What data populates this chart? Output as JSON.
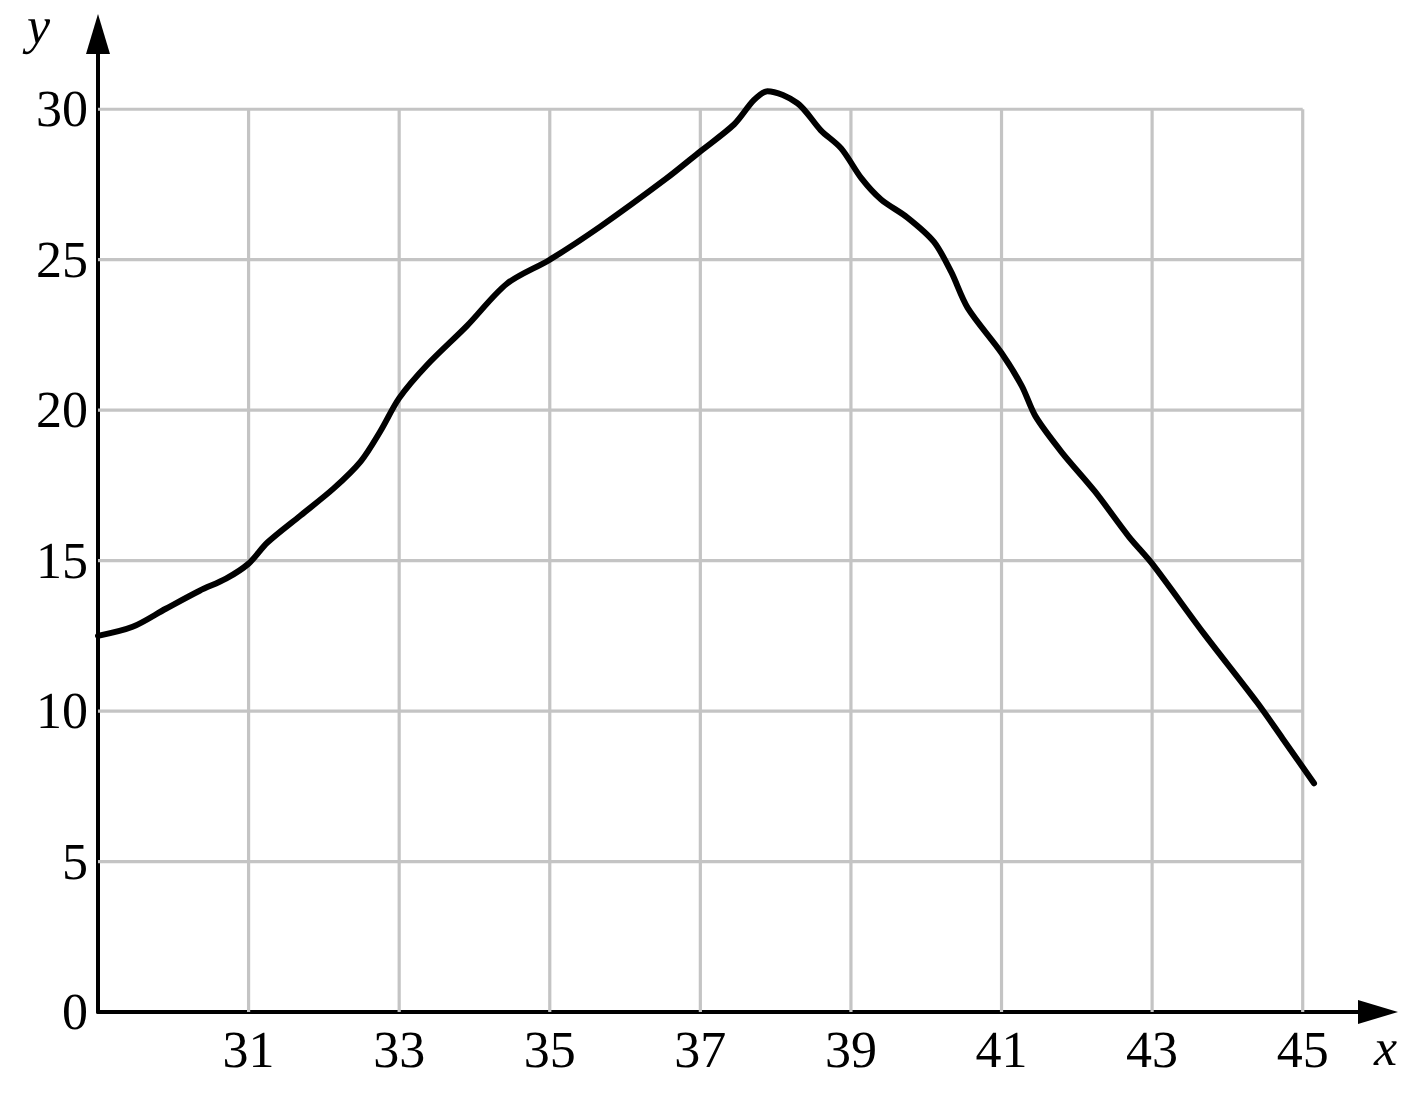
{
  "chart_data": {
    "type": "line",
    "xlabel": "x",
    "ylabel": "y",
    "x": [
      29.0,
      29.46,
      29.9,
      30.35,
      30.7,
      31.0,
      31.25,
      31.69,
      32.13,
      32.49,
      32.75,
      33.0,
      33.37,
      33.9,
      34.43,
      35.0,
      35.67,
      36.55,
      37.0,
      37.45,
      37.71,
      37.89,
      38.29,
      38.6,
      38.87,
      39.14,
      39.4,
      39.75,
      40.1,
      40.33,
      40.55,
      41.0,
      41.27,
      41.45,
      41.8,
      42.24,
      42.69,
      43.0,
      43.68,
      44.39,
      44.73,
      45.15
    ],
    "series": [
      {
        "color": "#000000",
        "values": [
          12.5,
          12.8,
          13.4,
          14.0,
          14.4,
          14.9,
          15.6,
          16.5,
          17.4,
          18.3,
          19.3,
          20.4,
          21.5,
          22.8,
          24.2,
          25.0,
          26.1,
          27.7,
          28.6,
          29.5,
          30.3,
          30.6,
          30.2,
          29.3,
          28.7,
          27.7,
          27.0,
          26.4,
          25.6,
          24.6,
          23.4,
          21.9,
          20.8,
          19.8,
          18.6,
          17.3,
          15.8,
          14.9,
          12.6,
          10.3,
          9.1,
          7.6
        ]
      }
    ],
    "xlim": [
      29,
      46
    ],
    "xticks": [
      31,
      33,
      35,
      37,
      39,
      41,
      43,
      45
    ],
    "ylim": [
      0,
      32.5
    ],
    "yticks": [
      0,
      5,
      10,
      15,
      20,
      25,
      30
    ],
    "grid": true,
    "marker": "none",
    "line_style": "solid"
  }
}
